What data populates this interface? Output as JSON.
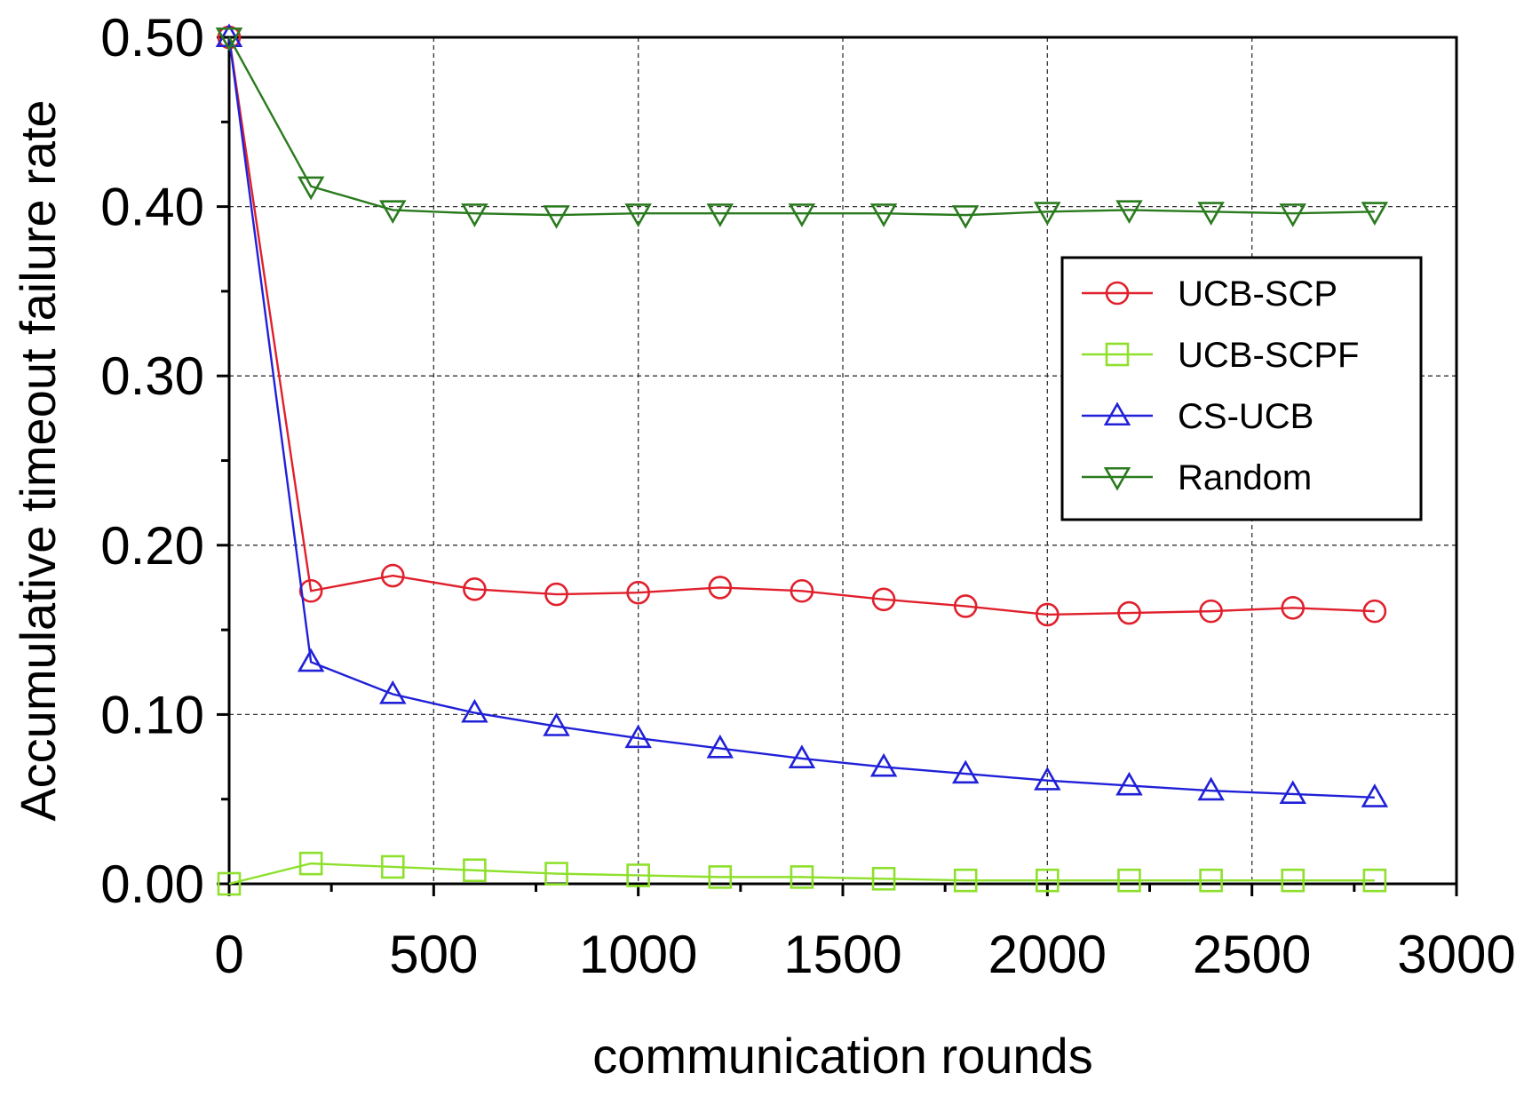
{
  "chart_data": {
    "type": "line",
    "title": "",
    "xlabel": "communication rounds",
    "ylabel": "Accumulative timeout failure rate",
    "xlim": [
      0,
      3000
    ],
    "ylim": [
      0,
      0.5
    ],
    "x_ticks": [
      "0",
      "500",
      "1000",
      "1500",
      "2000",
      "2500",
      "3000"
    ],
    "y_ticks": [
      "0.00",
      "0.10",
      "0.20",
      "0.30",
      "0.40",
      "0.50"
    ],
    "grid": true,
    "legend_position": "top-right",
    "x": [
      0,
      200,
      400,
      600,
      800,
      1000,
      1200,
      1400,
      1600,
      1800,
      2000,
      2200,
      2400,
      2600,
      2800
    ],
    "series": [
      {
        "name": "UCB-SCP",
        "color": "#e0202c",
        "marker": "circle",
        "values": [
          0.5,
          0.173,
          0.182,
          0.174,
          0.171,
          0.172,
          0.175,
          0.173,
          0.168,
          0.164,
          0.159,
          0.16,
          0.161,
          0.163,
          0.161
        ]
      },
      {
        "name": "UCB-SCPF",
        "color": "#8ee02c",
        "marker": "square",
        "values": [
          0.0,
          0.012,
          0.01,
          0.008,
          0.006,
          0.005,
          0.004,
          0.004,
          0.003,
          0.002,
          0.002,
          0.002,
          0.002,
          0.002,
          0.002
        ]
      },
      {
        "name": "CS-UCB",
        "color": "#2020d8",
        "marker": "triangle-up",
        "values": [
          0.5,
          0.131,
          0.112,
          0.101,
          0.093,
          0.086,
          0.08,
          0.074,
          0.069,
          0.065,
          0.061,
          0.058,
          0.055,
          0.053,
          0.051
        ]
      },
      {
        "name": "Random",
        "color": "#2a7a1e",
        "marker": "triangle-down",
        "values": [
          0.5,
          0.412,
          0.398,
          0.396,
          0.395,
          0.396,
          0.396,
          0.396,
          0.396,
          0.395,
          0.397,
          0.398,
          0.397,
          0.396,
          0.397
        ]
      }
    ]
  }
}
